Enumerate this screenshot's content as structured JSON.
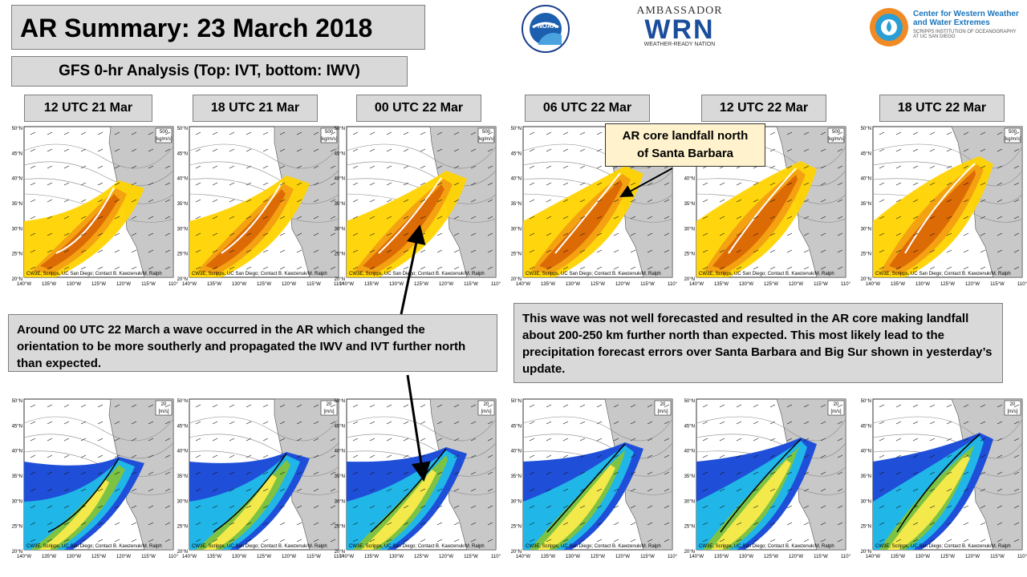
{
  "header": {
    "title": "AR Summary: 23 March 2018",
    "subtitle": "GFS 0-hr Analysis (Top: IVT, bottom: IWV)"
  },
  "logos": {
    "noaa": "NOAA",
    "ambassador_top": "AMBASSADOR",
    "ambassador_mark": "WRN",
    "ambassador_bottom": "WEATHER-READY NATION",
    "cw3e_line1": "Center for Western Weather",
    "cw3e_line2": "and Water Extremes",
    "cw3e_line3": "SCRIPPS INSTITUTION OF OCEANOGRAPHY",
    "cw3e_line4": "AT UC SAN DIEGO"
  },
  "time_labels": [
    "12 UTC 21 Mar",
    "18 UTC 21 Mar",
    "00 UTC 22 Mar",
    "06 UTC 22 Mar",
    "12 UTC 22 Mar",
    "18 UTC 22 Mar"
  ],
  "map": {
    "lat_labels": [
      "50°N",
      "45°N",
      "40°N",
      "35°N",
      "30°N",
      "25°N",
      "20°N"
    ],
    "lon_labels": [
      "140°W",
      "135°W",
      "130°W",
      "125°W",
      "120°W",
      "115°W",
      "110°"
    ],
    "ivt_units": "[kg/m/s]",
    "ivt_ref": "500",
    "iwv_units": "[m/s]",
    "iwv_ref": "20",
    "credit": "CW3E, Scripps, UC San Diego; Contact B. Kawzenuk/M. Ralph"
  },
  "callout": {
    "line1": "AR core landfall north",
    "line2": "of Santa Barbara"
  },
  "notes": {
    "left": "Around 00 UTC 22 March a wave occurred in the AR which changed the orientation to be more southerly and propagated the IWV and IVT further north than expected.",
    "right": "This wave was not well forecasted and resulted in the AR core making landfall about 200-250 km further north than expected. This most likely lead to the precipitation forecast errors over Santa Barbara and Big Sur shown in yesterday’s update."
  },
  "colors": {
    "ivt_yellow": "#ffd400",
    "ivt_orange": "#f39c12",
    "ivt_red": "#d35400",
    "iwv_blue": "#1f4fd8",
    "iwv_cyan": "#21b6e8",
    "iwv_green": "#7dc242",
    "iwv_yellow": "#f3e94b",
    "land": "#c8c8c8"
  }
}
